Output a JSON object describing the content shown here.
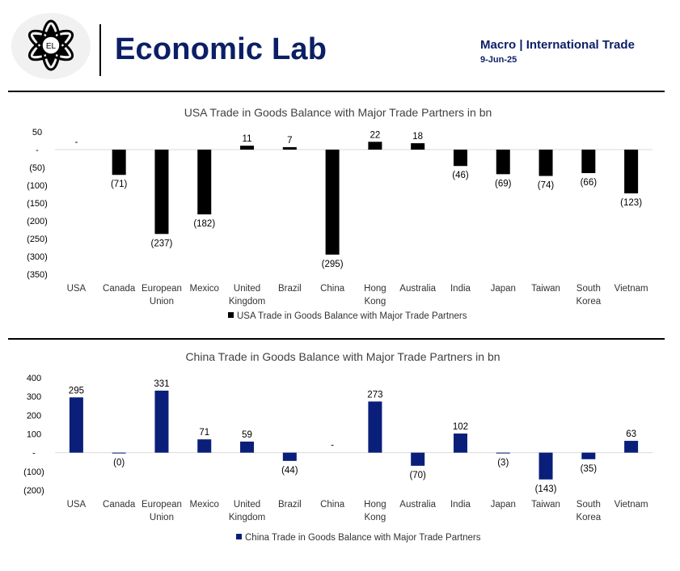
{
  "header": {
    "brand": "Economic Lab",
    "logo_text": "EL",
    "tags": "Macro | International Trade",
    "date": "9-Jun-25"
  },
  "colors": {
    "brand": "#0b1f66",
    "usa_bar": "#000000",
    "china_bar": "#0a1f7a",
    "zero_line": "#d9d9d9"
  },
  "chart_data": [
    {
      "type": "bar",
      "title": "USA Trade in Goods Balance with Major Trade Partners in bn",
      "categories": [
        "USA",
        "Canada",
        "European Union",
        "Mexico",
        "United Kingdom",
        "Brazil",
        "China",
        "Hong Kong",
        "Australia",
        "India",
        "Japan",
        "Taiwan",
        "South Korea",
        "Vietnam"
      ],
      "category_lines": [
        [
          "USA"
        ],
        [
          "Canada"
        ],
        [
          "European",
          "Union"
        ],
        [
          "Mexico"
        ],
        [
          "United",
          "Kingdom"
        ],
        [
          "Brazil"
        ],
        [
          "China"
        ],
        [
          "Hong",
          "Kong"
        ],
        [
          "Australia"
        ],
        [
          "India"
        ],
        [
          "Japan"
        ],
        [
          "Taiwan"
        ],
        [
          "South",
          "Korea"
        ],
        [
          "Vietnam"
        ]
      ],
      "values": [
        0,
        -71,
        -237,
        -182,
        11,
        7,
        -295,
        22,
        18,
        -46,
        -69,
        -74,
        -66,
        -123
      ],
      "data_labels": [
        "-",
        "(71)",
        "(237)",
        "(182)",
        "11",
        "7",
        "(295)",
        "22",
        "18",
        "(46)",
        "(69)",
        "(74)",
        "(66)",
        "(123)"
      ],
      "ylim": [
        -350,
        50
      ],
      "yticks": [
        50,
        0,
        -50,
        -100,
        -150,
        -200,
        -250,
        -300,
        -350
      ],
      "ytick_labels": [
        "50",
        "-",
        "(50)",
        "(100)",
        "(150)",
        "(200)",
        "(250)",
        "(300)",
        "(350)"
      ],
      "legend": "USA Trade in Goods Balance with Major Trade Partners",
      "legend_position": "bottom",
      "grid": false
    },
    {
      "type": "bar",
      "title": "China Trade in Goods Balance with Major Trade Partners in bn",
      "categories": [
        "USA",
        "Canada",
        "European Union",
        "Mexico",
        "United Kingdom",
        "Brazil",
        "China",
        "Hong Kong",
        "Australia",
        "India",
        "Japan",
        "Taiwan",
        "South Korea",
        "Vietnam"
      ],
      "category_lines": [
        [
          "USA"
        ],
        [
          "Canada"
        ],
        [
          "European",
          "Union"
        ],
        [
          "Mexico"
        ],
        [
          "United",
          "Kingdom"
        ],
        [
          "Brazil"
        ],
        [
          "China"
        ],
        [
          "Hong",
          "Kong"
        ],
        [
          "Australia"
        ],
        [
          "India"
        ],
        [
          "Japan"
        ],
        [
          "Taiwan"
        ],
        [
          "South",
          "Korea"
        ],
        [
          "Vietnam"
        ]
      ],
      "values": [
        295,
        -0.4,
        331,
        71,
        59,
        -44,
        0,
        273,
        -70,
        102,
        -3,
        -143,
        -35,
        63
      ],
      "data_labels": [
        "295",
        "(0)",
        "331",
        "71",
        "59",
        "(44)",
        "-",
        "273",
        "(70)",
        "102",
        "(3)",
        "(143)",
        "(35)",
        "63"
      ],
      "ylim": [
        -200,
        400
      ],
      "yticks": [
        400,
        300,
        200,
        100,
        0,
        -100,
        -200
      ],
      "ytick_labels": [
        "400",
        "300",
        "200",
        "100",
        "-",
        "(100)",
        "(200)"
      ],
      "legend": "China Trade in Goods Balance with Major Trade Partners",
      "legend_position": "bottom",
      "grid": false
    }
  ]
}
